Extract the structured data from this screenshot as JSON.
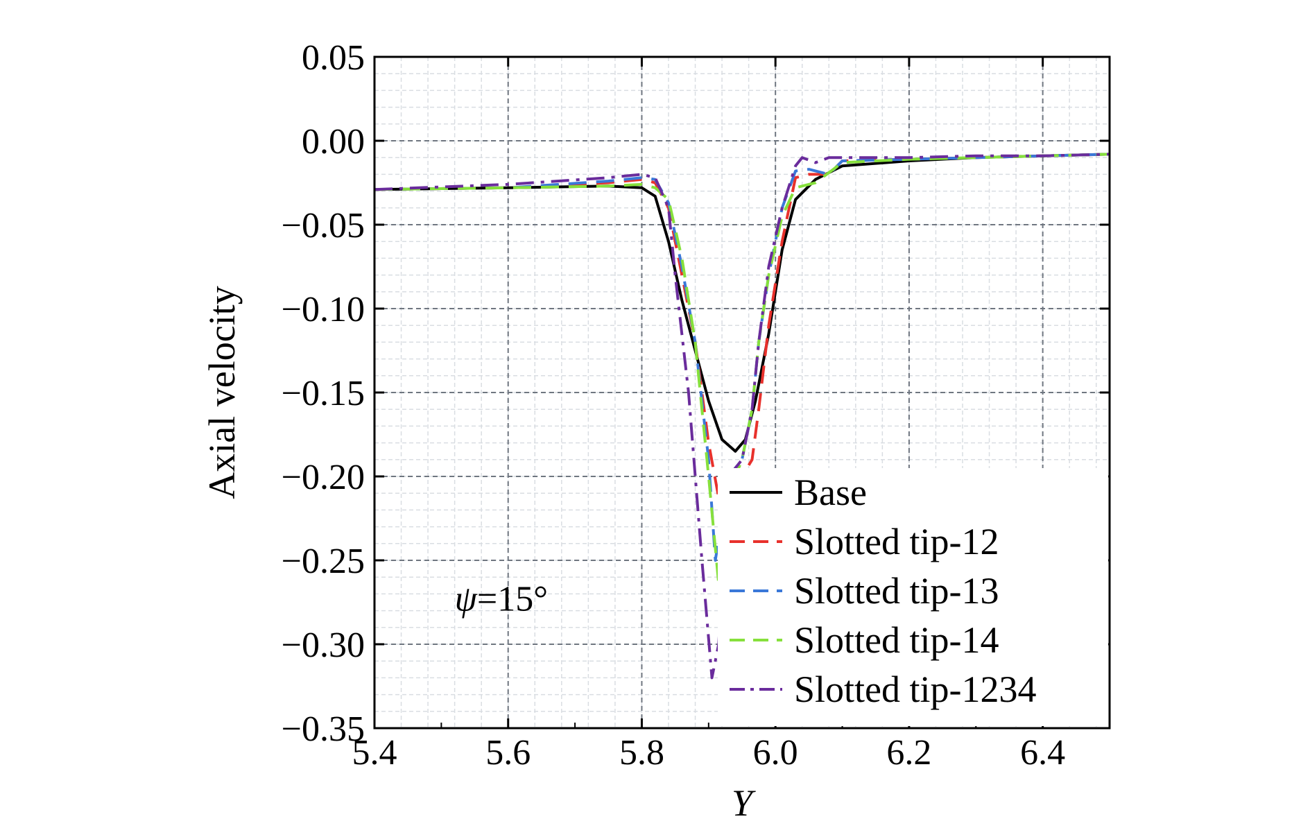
{
  "chart_data": {
    "type": "line",
    "title": "",
    "xlabel": "Y",
    "ylabel": "Axial velocity",
    "xlim": [
      5.4,
      6.5
    ],
    "ylim": [
      -0.35,
      0.05
    ],
    "xticks": [
      5.4,
      5.6,
      5.8,
      6.0,
      6.2,
      6.4
    ],
    "xtick_labels": [
      "5.4",
      "5.6",
      "5.8",
      "6.0",
      "6.2",
      "6.4"
    ],
    "yticks": [
      0.05,
      0.0,
      -0.05,
      -0.1,
      -0.15,
      -0.2,
      -0.25,
      -0.3,
      -0.35
    ],
    "ytick_labels": [
      "0.05",
      "0.00",
      "−0.05",
      "−0.10",
      "−0.15",
      "−0.20",
      "−0.25",
      "−0.30",
      "−0.35"
    ],
    "grid": true,
    "legend_position": "bottom-right",
    "annotation": {
      "symbol": "ψ",
      "text": "=15°"
    },
    "series": [
      {
        "name": "Base",
        "color": "#000000",
        "dash": "solid",
        "x": [
          5.4,
          5.6,
          5.75,
          5.8,
          5.82,
          5.84,
          5.86,
          5.88,
          5.9,
          5.92,
          5.94,
          5.955,
          5.97,
          5.99,
          6.01,
          6.03,
          6.06,
          6.1,
          6.2,
          6.3,
          6.4,
          6.5
        ],
        "y": [
          -0.029,
          -0.028,
          -0.027,
          -0.028,
          -0.033,
          -0.06,
          -0.095,
          -0.125,
          -0.155,
          -0.178,
          -0.185,
          -0.178,
          -0.155,
          -0.115,
          -0.065,
          -0.035,
          -0.023,
          -0.015,
          -0.012,
          -0.01,
          -0.009,
          -0.008
        ]
      },
      {
        "name": "Slotted tip-12",
        "color": "#e8312c",
        "dash": "dashed",
        "x": [
          5.4,
          5.6,
          5.75,
          5.8,
          5.82,
          5.84,
          5.86,
          5.88,
          5.9,
          5.93,
          5.95,
          5.965,
          5.975,
          5.99,
          6.01,
          6.03,
          6.05,
          6.08,
          6.1,
          6.2,
          6.3,
          6.4,
          6.5
        ],
        "y": [
          -0.029,
          -0.028,
          -0.025,
          -0.023,
          -0.025,
          -0.04,
          -0.08,
          -0.12,
          -0.18,
          -0.245,
          -0.2,
          -0.19,
          -0.16,
          -0.11,
          -0.06,
          -0.022,
          -0.02,
          -0.02,
          -0.012,
          -0.011,
          -0.01,
          -0.009,
          -0.008
        ]
      },
      {
        "name": "Slotted tip-13",
        "color": "#3a78d8",
        "dash": "dashed",
        "x": [
          5.4,
          5.6,
          5.75,
          5.8,
          5.82,
          5.84,
          5.86,
          5.88,
          5.9,
          5.91,
          5.93,
          5.95,
          5.965,
          5.975,
          5.99,
          6.01,
          6.03,
          6.05,
          6.08,
          6.1,
          6.2,
          6.3,
          6.4,
          6.5
        ],
        "y": [
          -0.029,
          -0.028,
          -0.024,
          -0.022,
          -0.023,
          -0.037,
          -0.075,
          -0.12,
          -0.19,
          -0.25,
          -0.2,
          -0.19,
          -0.16,
          -0.12,
          -0.08,
          -0.04,
          -0.018,
          -0.017,
          -0.02,
          -0.012,
          -0.011,
          -0.01,
          -0.009,
          -0.008
        ]
      },
      {
        "name": "Slotted tip-14",
        "color": "#86e03c",
        "dash": "dashed",
        "x": [
          5.4,
          5.6,
          5.75,
          5.8,
          5.82,
          5.84,
          5.86,
          5.88,
          5.9,
          5.92,
          5.94,
          5.95,
          5.965,
          5.975,
          5.99,
          6.01,
          6.03,
          6.06,
          6.1,
          6.2,
          6.3,
          6.4,
          6.5
        ],
        "y": [
          -0.029,
          -0.028,
          -0.027,
          -0.026,
          -0.028,
          -0.035,
          -0.07,
          -0.12,
          -0.2,
          -0.285,
          -0.2,
          -0.19,
          -0.16,
          -0.12,
          -0.08,
          -0.045,
          -0.028,
          -0.025,
          -0.013,
          -0.011,
          -0.01,
          -0.009,
          -0.008
        ]
      },
      {
        "name": "Slotted tip-1234",
        "color": "#6a2c9c",
        "dash": "dashdot",
        "x": [
          5.4,
          5.6,
          5.75,
          5.8,
          5.82,
          5.84,
          5.85,
          5.87,
          5.89,
          5.905,
          5.915,
          5.93,
          5.95,
          5.965,
          5.975,
          5.99,
          6.01,
          6.03,
          6.04,
          6.06,
          6.08,
          6.1,
          6.2,
          6.3,
          6.4,
          6.5
        ],
        "y": [
          -0.029,
          -0.026,
          -0.022,
          -0.02,
          -0.022,
          -0.04,
          -0.08,
          -0.15,
          -0.25,
          -0.32,
          -0.3,
          -0.2,
          -0.19,
          -0.16,
          -0.12,
          -0.075,
          -0.04,
          -0.015,
          -0.01,
          -0.013,
          -0.01,
          -0.01,
          -0.01,
          -0.009,
          -0.009,
          -0.008
        ]
      }
    ]
  }
}
